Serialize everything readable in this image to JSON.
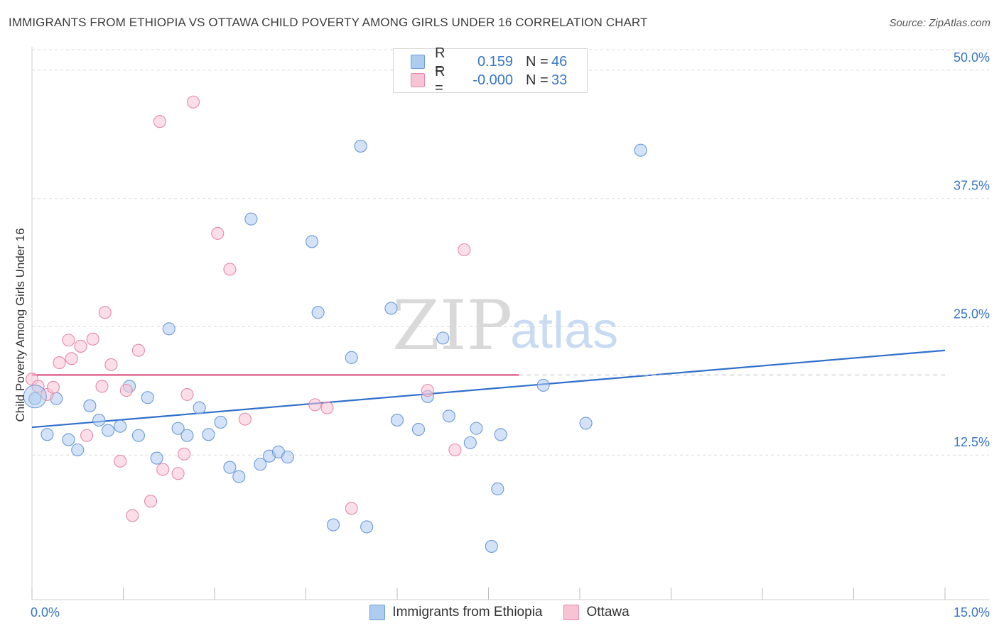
{
  "title": "IMMIGRANTS FROM ETHIOPIA VS OTTAWA CHILD POVERTY AMONG GIRLS UNDER 16 CORRELATION CHART",
  "source": "Source: ZipAtlas.com",
  "watermark": {
    "zip": "ZIP",
    "atlas": "atlas"
  },
  "legend": {
    "rows": [
      {
        "r_label": "R =",
        "r_value": "0.159",
        "n_label": "N =",
        "n_value": "46",
        "color": "#aecbf0",
        "border": "#6a9ad8"
      },
      {
        "r_label": "R =",
        "r_value": "-0.000",
        "n_label": "N =",
        "n_value": "33",
        "color": "#f8c3d3",
        "border": "#e58aa8"
      }
    ]
  },
  "bottom_legend": [
    {
      "label": "Immigrants from Ethiopia",
      "color": "#aecbf0",
      "border": "#6a9ad8"
    },
    {
      "label": "Ottawa",
      "color": "#f8c3d3",
      "border": "#e58aa8"
    }
  ],
  "chart_data": {
    "type": "scatter",
    "title": "IMMIGRANTS FROM ETHIOPIA VS OTTAWA CHILD POVERTY AMONG GIRLS UNDER 16 CORRELATION CHART",
    "xlabel": "",
    "ylabel": "Child Poverty Among Girls Under 16",
    "xlim": [
      0,
      15
    ],
    "ylim": [
      0,
      52
    ],
    "x_tick_labels": [
      "0.0%",
      "15.0%"
    ],
    "y_ticks": [
      12.5,
      25.0,
      37.5,
      50.0
    ],
    "y_tick_labels": [
      "12.5%",
      "25.0%",
      "37.5%",
      "50.0%"
    ],
    "grid": true,
    "series": [
      {
        "name": "Immigrants from Ethiopia",
        "color": "#aecbf0",
        "stroke": "#6a9ad8",
        "trend": {
          "x": [
            0,
            15
          ],
          "y": [
            15.2,
            22.7
          ],
          "color": "#2f6fcc"
        },
        "points": [
          [
            0.05,
            18.0
          ],
          [
            0.25,
            14.5
          ],
          [
            0.4,
            18.0
          ],
          [
            0.6,
            14.0
          ],
          [
            0.75,
            13.0
          ],
          [
            0.95,
            17.3
          ],
          [
            1.1,
            15.9
          ],
          [
            1.25,
            14.9
          ],
          [
            1.45,
            15.3
          ],
          [
            1.6,
            19.2
          ],
          [
            1.75,
            14.4
          ],
          [
            1.9,
            18.1
          ],
          [
            2.05,
            12.2
          ],
          [
            2.25,
            24.8
          ],
          [
            2.4,
            15.1
          ],
          [
            2.55,
            14.4
          ],
          [
            2.75,
            17.1
          ],
          [
            2.9,
            14.5
          ],
          [
            3.1,
            15.7
          ],
          [
            3.25,
            11.3
          ],
          [
            3.4,
            10.4
          ],
          [
            3.6,
            35.5
          ],
          [
            3.75,
            11.6
          ],
          [
            3.9,
            12.4
          ],
          [
            4.05,
            12.8
          ],
          [
            4.2,
            12.3
          ],
          [
            4.6,
            33.3
          ],
          [
            4.7,
            26.4
          ],
          [
            4.95,
            5.7
          ],
          [
            5.25,
            22.0
          ],
          [
            5.4,
            42.6
          ],
          [
            5.5,
            5.5
          ],
          [
            5.9,
            26.8
          ],
          [
            6.0,
            15.9
          ],
          [
            6.35,
            15.0
          ],
          [
            6.5,
            18.2
          ],
          [
            6.75,
            23.9
          ],
          [
            6.85,
            16.3
          ],
          [
            7.2,
            13.7
          ],
          [
            7.3,
            15.1
          ],
          [
            7.55,
            3.6
          ],
          [
            7.65,
            9.2
          ],
          [
            7.7,
            14.5
          ],
          [
            8.4,
            19.3
          ],
          [
            9.1,
            15.6
          ],
          [
            10.0,
            42.2
          ]
        ]
      },
      {
        "name": "Ottawa",
        "color": "#f8c3d3",
        "stroke": "#e58aa8",
        "trend": {
          "x": [
            0,
            8.0
          ],
          "y": [
            20.3,
            20.3
          ],
          "color": "#e0668e",
          "dash_to": 15
        },
        "points": [
          [
            0.0,
            19.9
          ],
          [
            0.1,
            19.2
          ],
          [
            0.25,
            18.4
          ],
          [
            0.35,
            19.1
          ],
          [
            0.45,
            21.5
          ],
          [
            0.6,
            23.7
          ],
          [
            0.65,
            21.9
          ],
          [
            0.8,
            23.1
          ],
          [
            0.9,
            14.4
          ],
          [
            1.0,
            23.8
          ],
          [
            1.15,
            19.2
          ],
          [
            1.2,
            26.4
          ],
          [
            1.3,
            21.3
          ],
          [
            1.45,
            11.9
          ],
          [
            1.55,
            18.8
          ],
          [
            1.65,
            6.6
          ],
          [
            1.75,
            22.7
          ],
          [
            1.95,
            8.0
          ],
          [
            2.1,
            45.0
          ],
          [
            2.15,
            11.1
          ],
          [
            2.4,
            10.7
          ],
          [
            2.5,
            12.6
          ],
          [
            2.55,
            18.4
          ],
          [
            2.65,
            46.9
          ],
          [
            3.05,
            34.1
          ],
          [
            3.25,
            30.6
          ],
          [
            3.5,
            16.0
          ],
          [
            4.65,
            17.4
          ],
          [
            4.85,
            17.1
          ],
          [
            5.25,
            7.3
          ],
          [
            6.5,
            18.8
          ],
          [
            6.95,
            13.0
          ],
          [
            7.1,
            32.5
          ]
        ]
      }
    ]
  }
}
